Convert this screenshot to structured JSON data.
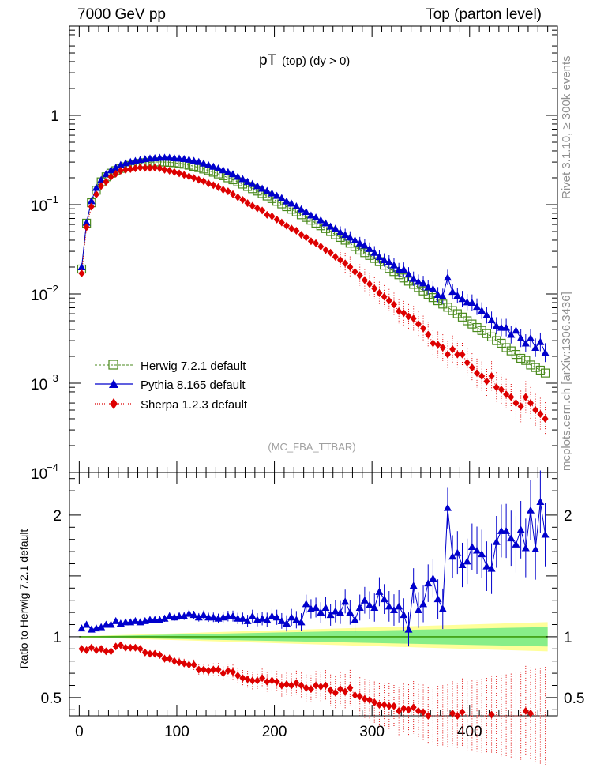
{
  "header": {
    "left": "7000 GeV pp",
    "right": "Top (parton level)"
  },
  "side_labels": {
    "rivet": "Rivet 3.1.10, ≥ 300k events",
    "mcplots": "mcplots.cern.ch [arXiv:1306.3436]"
  },
  "watermark": "(MC_FBA_TTBAR)",
  "chart_data": [
    {
      "type": "scatter",
      "title": "pT",
      "title_sub": "(top) (dy > 0)",
      "yscale": "log",
      "xlim": [
        -10,
        490
      ],
      "ylim": [
        0.0001,
        10
      ],
      "y_ticks": [
        {
          "value": 1,
          "label": "1"
        },
        {
          "value": 0.1,
          "label": "10",
          "exp": "−1"
        },
        {
          "value": 0.01,
          "label": "10",
          "exp": "−2"
        },
        {
          "value": 0.001,
          "label": "10",
          "exp": "−3"
        },
        {
          "value": 0.0001,
          "label": "10",
          "exp": "−4"
        }
      ],
      "legend_position": "lower-left",
      "series": [
        {
          "name": "Herwig 7.2.1 default",
          "color": "#4a8a1c",
          "marker": "open-square",
          "line": "dashed"
        },
        {
          "name": "Pythia 8.165 default",
          "color": "#0000cc",
          "marker": "triangle",
          "line": "solid"
        },
        {
          "name": "Sherpa 1.2.3 default",
          "color": "#dd0000",
          "marker": "diamond",
          "line": "dotted"
        }
      ],
      "x_bins": [
        2.5,
        7.5,
        12.5,
        17.5,
        22.5,
        27.5,
        32.5,
        37.5,
        42.5,
        47.5,
        52.5,
        57.5,
        62.5,
        67.5,
        72.5,
        77.5,
        82.5,
        87.5,
        92.5,
        97.5,
        102.5,
        107.5,
        112.5,
        117.5,
        122.5,
        127.5,
        132.5,
        137.5,
        142.5,
        147.5,
        152.5,
        157.5,
        162.5,
        167.5,
        172.5,
        177.5,
        182.5,
        187.5,
        192.5,
        197.5,
        202.5,
        207.5,
        212.5,
        217.5,
        222.5,
        227.5,
        232.5,
        237.5,
        242.5,
        247.5,
        252.5,
        257.5,
        262.5,
        267.5,
        272.5,
        277.5,
        282.5,
        287.5,
        292.5,
        297.5,
        302.5,
        307.5,
        312.5,
        317.5,
        322.5,
        327.5,
        332.5,
        337.5,
        342.5,
        347.5,
        352.5,
        357.5,
        362.5,
        367.5,
        372.5,
        377.5,
        382.5,
        387.5,
        392.5,
        397.5,
        402.5,
        407.5,
        412.5,
        417.5,
        422.5,
        427.5,
        432.5,
        437.5,
        442.5,
        447.5,
        452.5,
        457.5,
        462.5,
        467.5,
        472.5,
        477.5
      ],
      "herwig": [
        0.019,
        0.062,
        0.105,
        0.145,
        0.18,
        0.205,
        0.225,
        0.24,
        0.255,
        0.265,
        0.275,
        0.283,
        0.29,
        0.295,
        0.298,
        0.3,
        0.301,
        0.3,
        0.298,
        0.295,
        0.29,
        0.284,
        0.277,
        0.269,
        0.26,
        0.251,
        0.241,
        0.231,
        0.221,
        0.211,
        0.2,
        0.19,
        0.18,
        0.17,
        0.16,
        0.151,
        0.142,
        0.133,
        0.125,
        0.117,
        0.109,
        0.102,
        0.095,
        0.089,
        0.083,
        0.077,
        0.072,
        0.067,
        0.062,
        0.058,
        0.054,
        0.05,
        0.046,
        0.043,
        0.04,
        0.037,
        0.034,
        0.031,
        0.029,
        0.027,
        0.025,
        0.023,
        0.021,
        0.0193,
        0.0178,
        0.0164,
        0.0151,
        0.0139,
        0.0128,
        0.0118,
        0.0108,
        0.0099,
        0.0091,
        0.0084,
        0.0077,
        0.0071,
        0.0065,
        0.006,
        0.0055,
        0.005,
        0.0046,
        0.0042,
        0.0039,
        0.0036,
        0.0033,
        0.003,
        0.0028,
        0.0025,
        0.0023,
        0.0021,
        0.0019,
        0.0018,
        0.0016,
        0.0015,
        0.0014,
        0.0013
      ],
      "pythia": [
        0.02,
        0.063,
        0.11,
        0.155,
        0.19,
        0.22,
        0.244,
        0.26,
        0.28,
        0.292,
        0.302,
        0.31,
        0.318,
        0.325,
        0.33,
        0.333,
        0.336,
        0.337,
        0.336,
        0.333,
        0.33,
        0.326,
        0.32,
        0.311,
        0.302,
        0.29,
        0.278,
        0.267,
        0.255,
        0.244,
        0.232,
        0.22,
        0.206,
        0.194,
        0.181,
        0.171,
        0.162,
        0.152,
        0.143,
        0.134,
        0.126,
        0.119,
        0.109,
        0.103,
        0.096,
        0.089,
        0.083,
        0.076,
        0.072,
        0.067,
        0.062,
        0.057,
        0.054,
        0.049,
        0.046,
        0.043,
        0.04,
        0.037,
        0.035,
        0.032,
        0.029,
        0.026,
        0.024,
        0.0228,
        0.021,
        0.0186,
        0.0188,
        0.0166,
        0.0148,
        0.0137,
        0.0132,
        0.0119,
        0.0114,
        0.0098,
        0.0094,
        0.0153,
        0.0106,
        0.0096,
        0.0088,
        0.0081,
        0.008,
        0.0072,
        0.0065,
        0.0058,
        0.0051,
        0.0044,
        0.0042,
        0.0042,
        0.0035,
        0.0039,
        0.0032,
        0.0028,
        0.0032,
        0.0025,
        0.0029,
        0.0022
      ],
      "sherpa": [
        0.017,
        0.056,
        0.095,
        0.13,
        0.162,
        0.18,
        0.205,
        0.222,
        0.24,
        0.245,
        0.25,
        0.255,
        0.26,
        0.258,
        0.258,
        0.259,
        0.256,
        0.246,
        0.24,
        0.232,
        0.224,
        0.215,
        0.207,
        0.199,
        0.19,
        0.183,
        0.173,
        0.165,
        0.157,
        0.147,
        0.141,
        0.131,
        0.121,
        0.113,
        0.104,
        0.097,
        0.091,
        0.086,
        0.077,
        0.074,
        0.068,
        0.063,
        0.058,
        0.054,
        0.051,
        0.046,
        0.043,
        0.039,
        0.037,
        0.034,
        0.031,
        0.029,
        0.026,
        0.024,
        0.022,
        0.02,
        0.0177,
        0.0162,
        0.0143,
        0.0129,
        0.0115,
        0.0102,
        0.0093,
        0.0084,
        0.0076,
        0.0064,
        0.0061,
        0.0056,
        0.0053,
        0.0046,
        0.0041,
        0.0035,
        0.0028,
        0.0027,
        0.0025,
        0.0021,
        0.0024,
        0.0021,
        0.0021,
        0.0017,
        0.0015,
        0.0013,
        0.0012,
        0.00105,
        0.0012,
        0.0009,
        0.00085,
        0.00075,
        0.0007,
        0.0006,
        0.00055,
        0.0007,
        0.0006,
        0.0005,
        0.00045,
        0.0004
      ]
    },
    {
      "type": "scatter",
      "ylabel": "Ratio to Herwig 7.2.1 default",
      "xlim": [
        -10,
        490
      ],
      "ylim": [
        0.35,
        2.35
      ],
      "x_ticks": [
        0,
        100,
        200,
        300,
        400
      ],
      "y_ticks": [
        0.5,
        1,
        2
      ],
      "reference": 1.0,
      "band_inner_halfwidth_at_end": 0.08,
      "band_outer_halfwidth_at_end": 0.12,
      "pythia_ratio": [
        1.07,
        1.1,
        1.06,
        1.07,
        1.08,
        1.1,
        1.1,
        1.13,
        1.11,
        1.12,
        1.12,
        1.13,
        1.12,
        1.13,
        1.14,
        1.14,
        1.14,
        1.15,
        1.17,
        1.16,
        1.17,
        1.17,
        1.19,
        1.18,
        1.16,
        1.18,
        1.16,
        1.16,
        1.15,
        1.16,
        1.17,
        1.17,
        1.15,
        1.15,
        1.13,
        1.17,
        1.14,
        1.15,
        1.14,
        1.17,
        1.16,
        1.13,
        1.11,
        1.16,
        1.14,
        1.12,
        1.27,
        1.23,
        1.24,
        1.2,
        1.24,
        1.18,
        1.21,
        1.2,
        1.29,
        1.2,
        1.14,
        1.24,
        1.3,
        1.26,
        1.24,
        1.37,
        1.31,
        1.25,
        1.22,
        1.25,
        1.18,
        1.06,
        1.42,
        1.22,
        1.27,
        1.44,
        1.48,
        1.31,
        1.23,
        2.06,
        1.66,
        1.69,
        1.59,
        1.62,
        1.74,
        1.71,
        1.68,
        1.58,
        1.56,
        1.78,
        1.87,
        1.87,
        1.81,
        1.76,
        1.88,
        1.73,
        2.04,
        1.72,
        2.11,
        1.84
      ],
      "sherpa_ratio": [
        0.9,
        0.89,
        0.91,
        0.89,
        0.9,
        0.88,
        0.88,
        0.92,
        0.93,
        0.91,
        0.91,
        0.91,
        0.9,
        0.87,
        0.86,
        0.86,
        0.85,
        0.82,
        0.82,
        0.8,
        0.79,
        0.78,
        0.77,
        0.77,
        0.73,
        0.73,
        0.72,
        0.73,
        0.73,
        0.7,
        0.72,
        0.71,
        0.68,
        0.66,
        0.65,
        0.64,
        0.64,
        0.66,
        0.63,
        0.64,
        0.63,
        0.6,
        0.61,
        0.6,
        0.62,
        0.6,
        0.58,
        0.57,
        0.6,
        0.59,
        0.6,
        0.56,
        0.54,
        0.57,
        0.55,
        0.58,
        0.52,
        0.51,
        0.49,
        0.48,
        0.46,
        0.44,
        0.44,
        0.43,
        0.43,
        0.39,
        0.41,
        0.4,
        0.42,
        0.39,
        0.38,
        0.35,
        0.31,
        0.32,
        0.32,
        0.3,
        0.37,
        0.35,
        0.38,
        0.34,
        0.33,
        0.31,
        0.3,
        0.29,
        0.36,
        0.3,
        0.3,
        0.3,
        0.3,
        0.29,
        0.29,
        0.39,
        0.37,
        0.33,
        0.32,
        0.31
      ]
    }
  ]
}
